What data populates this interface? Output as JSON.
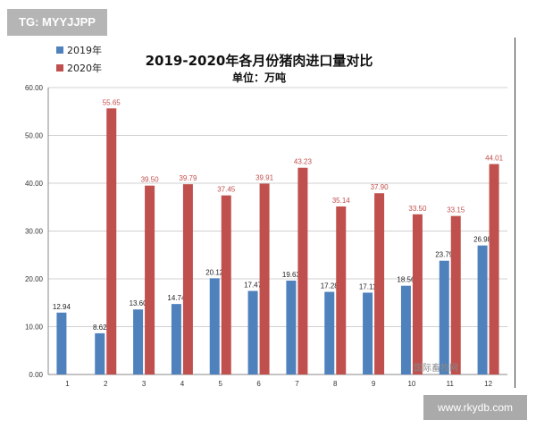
{
  "watermark_top": "TG: MYYJJPP",
  "watermark_bottom": "www.rkydb.com",
  "watermark_chart": "国际畜牧网",
  "chart_data": {
    "type": "bar",
    "title": "2019-2020年各月份猪肉进口量对比",
    "subtitle": "单位：万吨",
    "categories": [
      "1",
      "2",
      "3",
      "4",
      "5",
      "6",
      "7",
      "8",
      "9",
      "10",
      "11",
      "12"
    ],
    "series": [
      {
        "name": "2019年",
        "color": "#4f81bd",
        "values": [
          12.94,
          8.62,
          13.6,
          14.74,
          20.12,
          17.47,
          19.63,
          17.28,
          17.11,
          18.56,
          23.79,
          26.98
        ],
        "labels": [
          "12.94",
          "8.62",
          "13.60",
          "14.74",
          "20.12",
          "17.47",
          "19.63",
          "17.28",
          "17.11",
          "18.56",
          "23.79",
          "26.98"
        ]
      },
      {
        "name": "2020年",
        "color": "#c0504d",
        "values": [
          null,
          55.65,
          39.5,
          39.79,
          37.45,
          39.91,
          43.23,
          35.14,
          37.9,
          33.5,
          33.15,
          44.01
        ],
        "labels": [
          "",
          "55.65",
          "39.50",
          "39.79",
          "37.45",
          "39.91",
          "43.23",
          "35.14",
          "37.90",
          "33.50",
          "33.15",
          "44.01"
        ]
      }
    ],
    "yticks": [
      "0.00",
      "10.00",
      "20.00",
      "30.00",
      "40.00",
      "50.00",
      "60.00"
    ],
    "ylim": [
      0,
      60
    ],
    "grid": true,
    "legend": "top-left"
  }
}
